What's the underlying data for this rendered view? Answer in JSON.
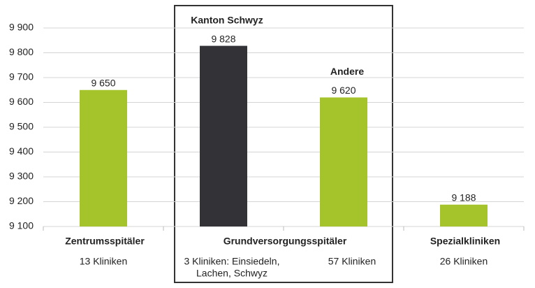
{
  "chart_data": {
    "type": "bar",
    "ylim": [
      9100,
      9900
    ],
    "yticks": [
      {
        "value": 9100,
        "label": "9 100"
      },
      {
        "value": 9200,
        "label": "9 200"
      },
      {
        "value": 9300,
        "label": "9 300"
      },
      {
        "value": 9400,
        "label": "9 400"
      },
      {
        "value": 9500,
        "label": "9 500"
      },
      {
        "value": 9600,
        "label": "9 600"
      },
      {
        "value": 9700,
        "label": "9 700"
      },
      {
        "value": 9800,
        "label": "9 800"
      },
      {
        "value": 9900,
        "label": "9 900"
      }
    ],
    "grid": true,
    "groups": [
      {
        "label": "Zentrumsspitäler",
        "bars": [
          {
            "value": 9650,
            "value_label": "9 650",
            "color": "#a5c42c",
            "note": [
              "13 Kliniken"
            ]
          }
        ]
      },
      {
        "label": "Grundversorgungsspitäler",
        "bars": [
          {
            "name": "Kanton Schwyz",
            "value": 9828,
            "value_label": "9 828",
            "color": "#333236",
            "note": [
              "3 Kliniken: Einsiedeln,",
              "Lachen, Schwyz"
            ]
          },
          {
            "name": "Andere",
            "value": 9620,
            "value_label": "9 620",
            "color": "#a5c42c",
            "note": [
              "57 Kliniken"
            ]
          }
        ]
      },
      {
        "label": "Spezialkliniken",
        "bars": [
          {
            "value": 9188,
            "value_label": "9 188",
            "color": "#a5c42c",
            "note": [
              "26 Kliniken"
            ]
          }
        ]
      }
    ]
  }
}
